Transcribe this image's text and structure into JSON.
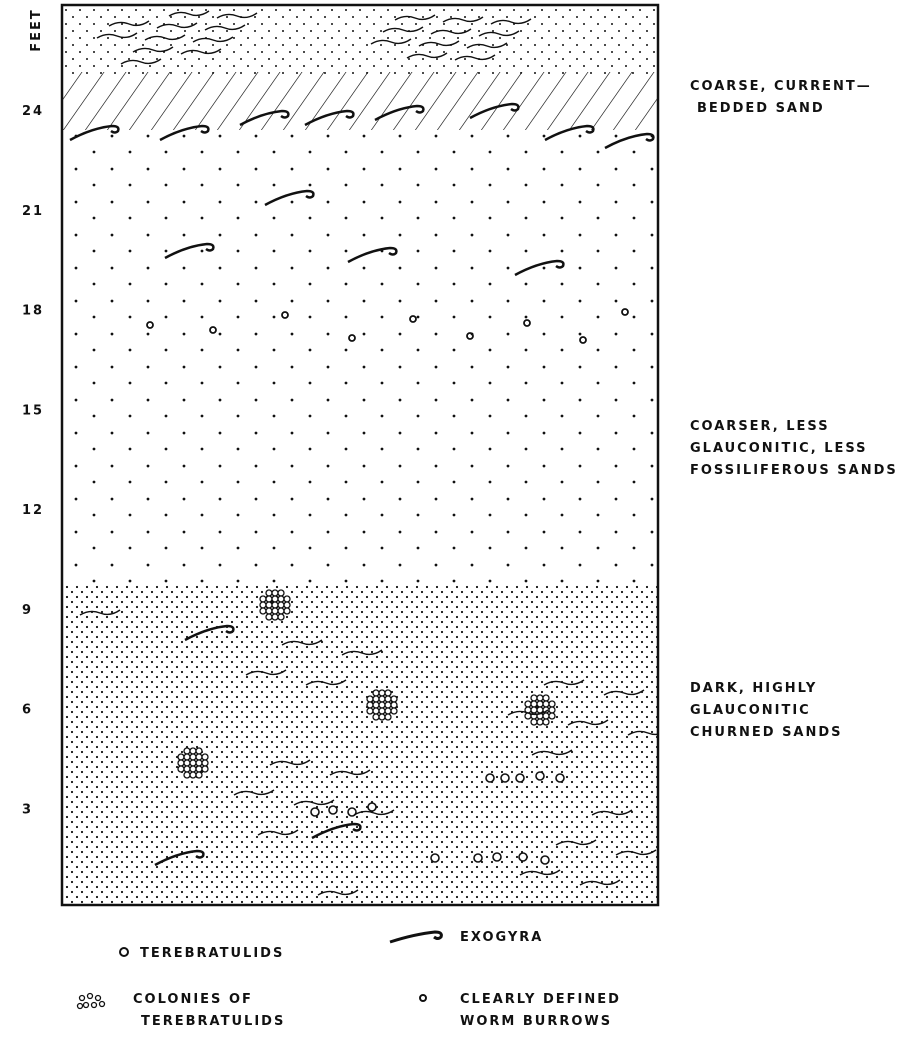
{
  "scale": {
    "label": "FEET",
    "ticks": [
      24,
      21,
      18,
      15,
      12,
      9,
      6,
      3
    ]
  },
  "annotations": [
    {
      "lines": [
        "COARSE, CURRENT—",
        "BEDDED SAND"
      ]
    },
    {
      "lines": [
        "COARSER, LESS",
        "GLAUCONITIC, LESS",
        "FOSSILIFEROUS SANDS"
      ]
    },
    {
      "lines": [
        "DARK, HIGHLY",
        "GLAUCONITIC",
        "CHURNED SANDS"
      ]
    }
  ],
  "legend": [
    {
      "lines": [
        "TEREBRATULIDS"
      ]
    },
    {
      "lines": [
        "EXOGYRA"
      ]
    },
    {
      "lines": [
        "COLONIES OF",
        "TEREBRATULIDS"
      ]
    },
    {
      "lines": [
        "CLEARLY DEFINED",
        "WORM BURROWS"
      ]
    }
  ]
}
